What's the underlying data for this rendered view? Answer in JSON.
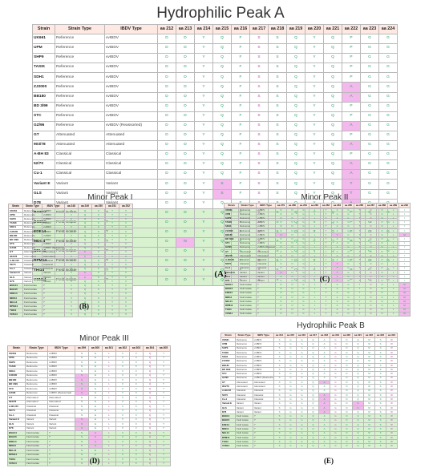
{
  "strains": [
    "UK661",
    "UPM",
    "SHP9",
    "TASIK",
    "SDH1",
    "ZJ2000",
    "BB180",
    "BD 3/99",
    "STC",
    "GZ/96",
    "GT",
    "903/78",
    "A-BH 83",
    "52/70",
    "Cu-1",
    "Variant E",
    "GLS",
    "D78",
    "BGE14",
    "BGE15",
    "EDE14",
    "MDI14",
    "NEL14",
    "RPM14",
    "THI14",
    "VCN14"
  ],
  "strain_types": [
    "Reference",
    "Reference",
    "Reference",
    "Reference",
    "Reference",
    "Reference",
    "Reference",
    "Reference",
    "Reference",
    "Reference",
    "Attenuated",
    "Attenuated",
    "Classical",
    "Classical",
    "Classical",
    "Variant",
    "Variant",
    "Variant",
    "Field isolate",
    "Field isolate",
    "Field isolate",
    "Field isolate",
    "Field isolate",
    "Field isolate",
    "Field isolate",
    "Field isolate"
  ],
  "ibdv_types": [
    "vvIBDV",
    "vvIBDV",
    "vvIBDV",
    "vvIBDV",
    "vvIBDV",
    "vvIBDV",
    "vvIBDV",
    "vvIBDV",
    "vvIBDV",
    "vvIBDV (Reassorted)",
    "Attenuated",
    "Attenuated",
    "Classical",
    "Classical",
    "Classical",
    "Variant",
    "Variant",
    "Variant",
    "?",
    "?",
    "?",
    "?",
    "?",
    "?",
    "?",
    "?"
  ],
  "header": {
    "strain": "Strain",
    "strain_type": "Strain Type",
    "ibdv_type": "IBDV Type"
  },
  "panels": {
    "A": {
      "title": "Hydrophilic Peak A",
      "label": "(A)",
      "positions": [
        "aa 212",
        "aa 213",
        "aa 214",
        "aa 215",
        "aa 216",
        "aa 217",
        "aa 218",
        "aa 219",
        "aa 220",
        "aa 221",
        "aa 222",
        "aa 223",
        "aa 224"
      ],
      "residues": [
        "D",
        "D",
        "Y",
        "Q",
        "F",
        "S",
        "S",
        "Q",
        "Y",
        "Q",
        "P",
        "G",
        "G"
      ],
      "mutations": [
        {
          "row": 5,
          "col": 10,
          "aa": "A"
        },
        {
          "row": 6,
          "col": 10,
          "aa": "A"
        },
        {
          "row": 9,
          "col": 10,
          "aa": "A"
        },
        {
          "row": 11,
          "col": 10,
          "aa": "A"
        },
        {
          "row": 13,
          "col": 10,
          "aa": "A"
        },
        {
          "row": 14,
          "col": 10,
          "aa": "A"
        },
        {
          "row": 15,
          "col": 3,
          "aa": "S"
        },
        {
          "row": 15,
          "col": 10,
          "aa": "T"
        },
        {
          "row": 16,
          "col": 3,
          "aa": "S"
        },
        {
          "row": 16,
          "col": 10,
          "aa": "T"
        },
        {
          "row": 17,
          "col": 10,
          "aa": "A"
        },
        {
          "row": 21,
          "col": 1,
          "aa": "N"
        }
      ]
    },
    "B": {
      "title": "Minor Peak I",
      "label": "(B)",
      "positions": [
        "aa 248",
        "aa 249",
        "aa 250",
        "aa 251",
        "aa 252"
      ],
      "residues": [
        "V",
        "Q",
        "K",
        "T",
        "V"
      ],
      "mutations": [
        {
          "row": 10,
          "col": 1,
          "aa": "K"
        },
        {
          "row": 11,
          "col": 1,
          "aa": "K"
        },
        {
          "row": 15,
          "col": 1,
          "aa": "K"
        },
        {
          "row": 16,
          "col": 1,
          "aa": "K"
        }
      ]
    },
    "C": {
      "title": "Minor Peak II",
      "label": "(C)",
      "positions": [
        "aa 279",
        "aa 280",
        "aa 281",
        "aa 282",
        "aa 283",
        "aa 284",
        "aa 285",
        "aa 286",
        "aa 287",
        "aa 288",
        "aa 289",
        "aa 290"
      ],
      "residues": [
        "D",
        "N",
        "G",
        "L",
        "T",
        "A",
        "G",
        "T",
        "D",
        "N",
        "L",
        "I"
      ],
      "mutations": [
        {
          "row": 6,
          "col": 0,
          "aa": "N"
        },
        {
          "row": 6,
          "col": 5,
          "aa": "T"
        },
        {
          "row": 6,
          "col": 11,
          "aa": "M"
        },
        {
          "row": 13,
          "col": 5,
          "aa": "T"
        },
        {
          "row": 14,
          "col": 5,
          "aa": "T"
        },
        {
          "row": 15,
          "col": 0,
          "aa": "N"
        },
        {
          "row": 15,
          "col": 5,
          "aa": "T"
        },
        {
          "row": 16,
          "col": 5,
          "aa": "T"
        },
        {
          "row": 17,
          "col": 5,
          "aa": "T"
        },
        {
          "row": 18,
          "col": 11,
          "aa": "M"
        },
        {
          "row": 19,
          "col": 11,
          "aa": "M"
        },
        {
          "row": 20,
          "col": 11,
          "aa": "M"
        },
        {
          "row": 21,
          "col": 11,
          "aa": "M"
        },
        {
          "row": 22,
          "col": 11,
          "aa": "M"
        },
        {
          "row": 23,
          "col": 11,
          "aa": "M"
        },
        {
          "row": 24,
          "col": 11,
          "aa": "M"
        },
        {
          "row": 25,
          "col": 11,
          "aa": "M"
        }
      ]
    },
    "D": {
      "title": "Minor Peak III",
      "label": "(D)",
      "positions": [
        "aa 299",
        "aa 300",
        "aa 301",
        "aa 302",
        "aa 303",
        "aa 304",
        "aa 305"
      ],
      "residues": [
        "N",
        "E",
        "L",
        "V",
        "F",
        "Q",
        "T"
      ],
      "mutations": [
        {
          "row": 5,
          "col": 0,
          "aa": "S"
        },
        {
          "row": 6,
          "col": 0,
          "aa": "S"
        },
        {
          "row": 7,
          "col": 0,
          "aa": "S"
        },
        {
          "row": 8,
          "col": 0,
          "aa": "S"
        },
        {
          "row": 9,
          "col": 0,
          "aa": "S"
        },
        {
          "row": 15,
          "col": 0,
          "aa": "S"
        },
        {
          "row": 16,
          "col": 0,
          "aa": "S"
        },
        {
          "row": 17,
          "col": 0,
          "aa": "S"
        },
        {
          "row": 18,
          "col": 1,
          "aa": "A"
        },
        {
          "row": 19,
          "col": 1,
          "aa": "A"
        },
        {
          "row": 20,
          "col": 1,
          "aa": "A"
        },
        {
          "row": 21,
          "col": 1,
          "aa": "A"
        }
      ]
    },
    "E": {
      "title": "Hydrophilic Peak B",
      "label": "(E)",
      "positions": [
        "aa 314",
        "aa 315",
        "aa 316",
        "aa 317",
        "aa 318",
        "aa 319",
        "aa 320",
        "aa 321",
        "aa 322",
        "aa 323",
        "aa 324"
      ],
      "residues": [
        "S",
        "G",
        "G",
        "Q",
        "A",
        "G",
        "D",
        "Q",
        "M",
        "S",
        "W"
      ],
      "mutations": [
        {
          "row": 10,
          "col": 4,
          "aa": "A"
        },
        {
          "row": 13,
          "col": 4,
          "aa": "A"
        },
        {
          "row": 14,
          "col": 4,
          "aa": "A"
        },
        {
          "row": 15,
          "col": 4,
          "aa": "A"
        },
        {
          "row": 15,
          "col": 7,
          "aa": "K"
        },
        {
          "row": 16,
          "col": 4,
          "aa": "A"
        },
        {
          "row": 16,
          "col": 7,
          "aa": "K"
        },
        {
          "row": 17,
          "col": 4,
          "aa": "A"
        }
      ]
    }
  }
}
